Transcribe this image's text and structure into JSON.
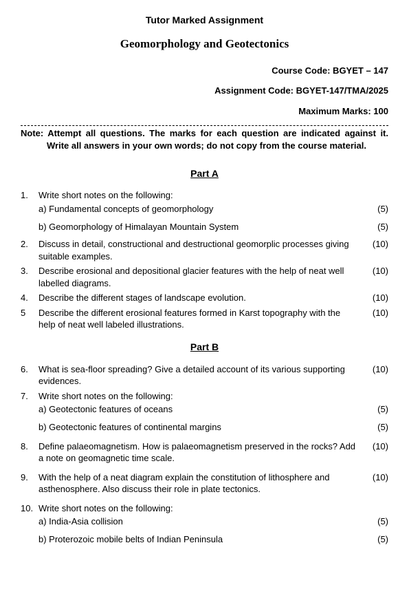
{
  "header": {
    "title": "Tutor Marked Assignment",
    "subject": "Geomorphology and Geotectonics",
    "course_code": "Course Code: BGYET – 147",
    "assignment_code": "Assignment Code: BGYET-147/TMA/2025",
    "max_marks": "Maximum Marks: 100"
  },
  "note": "Note: Attempt all questions. The marks for each question are indicated against it. Write all answers in your own words; do not copy from the course material.",
  "partA": {
    "title": "Part A",
    "q1": {
      "num": "1.",
      "text": "Write short notes on the following:",
      "a": "a) Fundamental concepts of geomorphology",
      "a_marks": "(5)",
      "b": "b) Geomorphology of Himalayan Mountain System",
      "b_marks": "(5)"
    },
    "q2": {
      "num": "2.",
      "text": "Discuss in detail, constructional and destructional geomorplic processes giving suitable examples.",
      "marks": "(10)"
    },
    "q3": {
      "num": "3.",
      "text": "Describe erosional and depositional glacier features with the help of neat well labelled diagrams.",
      "marks": "(10)"
    },
    "q4": {
      "num": "4.",
      "text": "Describe the different stages of landscape evolution.",
      "marks": "(10)"
    },
    "q5": {
      "num": "5",
      "text": "Describe the different erosional features formed in Karst topography with the help of neat well labeled illustrations.",
      "marks": "(10)"
    }
  },
  "partB": {
    "title": "Part B",
    "q6": {
      "num": "6.",
      "text": "What is sea-floor spreading? Give a detailed account of its various supporting evidences.",
      "marks": "(10)"
    },
    "q7": {
      "num": "7.",
      "text": "Write short notes on the following:",
      "a": "a) Geotectonic features of oceans",
      "a_marks": "(5)",
      "b": "b) Geotectonic features of continental margins",
      "b_marks": "(5)"
    },
    "q8": {
      "num": "8.",
      "text": "Define palaeomagnetism. How is palaeomagnetism preserved in the rocks? Add a note on geomagnetic time scale.",
      "marks": "(10)"
    },
    "q9": {
      "num": "9.",
      "text": "With the help of a neat diagram explain the constitution of lithosphere and asthenosphere. Also discuss their role in plate tectonics.",
      "marks": "(10)"
    },
    "q10": {
      "num": "10.",
      "text": "Write short notes on the following:",
      "a": "a) India-Asia collision",
      "a_marks": "(5)",
      "b": "b) Proterozoic mobile belts of Indian Peninsula",
      "b_marks": "(5)"
    }
  }
}
